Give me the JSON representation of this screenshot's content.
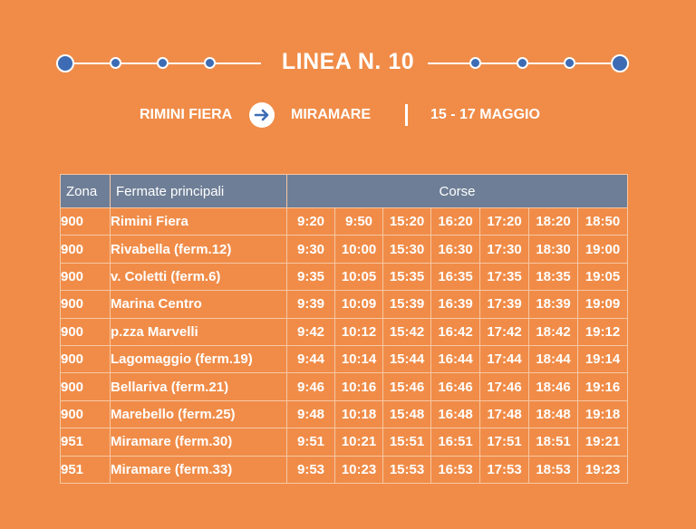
{
  "header": {
    "title": "LINEA N. 10",
    "origin": "RIMINI FIERA",
    "destination": "MIRAMARE",
    "dates": "15 - 17 MAGGIO",
    "arrow_icon": "arrow-right-icon",
    "accent_color": "#3d6cb5",
    "background_color": "#f08c48"
  },
  "table": {
    "headers": {
      "zona": "Zona",
      "fermate": "Fermate principali",
      "corse": "Corse"
    },
    "header_color": "#6e7e96",
    "rows": [
      {
        "zona": "900",
        "stop": "Rimini Fiera",
        "times": [
          "9:20",
          "9:50",
          "15:20",
          "16:20",
          "17:20",
          "18:20",
          "18:50"
        ]
      },
      {
        "zona": "900",
        "stop": "Rivabella (ferm.12)",
        "times": [
          "9:30",
          "10:00",
          "15:30",
          "16:30",
          "17:30",
          "18:30",
          "19:00"
        ]
      },
      {
        "zona": "900",
        "stop": "v. Coletti (ferm.6)",
        "times": [
          "9:35",
          "10:05",
          "15:35",
          "16:35",
          "17:35",
          "18:35",
          "19:05"
        ]
      },
      {
        "zona": "900",
        "stop": "Marina Centro",
        "times": [
          "9:39",
          "10:09",
          "15:39",
          "16:39",
          "17:39",
          "18:39",
          "19:09"
        ]
      },
      {
        "zona": "900",
        "stop": "p.zza Marvelli",
        "times": [
          "9:42",
          "10:12",
          "15:42",
          "16:42",
          "17:42",
          "18:42",
          "19:12"
        ]
      },
      {
        "zona": "900",
        "stop": "Lagomaggio (ferm.19)",
        "times": [
          "9:44",
          "10:14",
          "15:44",
          "16:44",
          "17:44",
          "18:44",
          "19:14"
        ]
      },
      {
        "zona": "900",
        "stop": "Bellariva (ferm.21)",
        "times": [
          "9:46",
          "10:16",
          "15:46",
          "16:46",
          "17:46",
          "18:46",
          "19:16"
        ]
      },
      {
        "zona": "900",
        "stop": "Marebello (ferm.25)",
        "times": [
          "9:48",
          "10:18",
          "15:48",
          "16:48",
          "17:48",
          "18:48",
          "19:18"
        ]
      },
      {
        "zona": "951",
        "stop": "Miramare (ferm.30)",
        "times": [
          "9:51",
          "10:21",
          "15:51",
          "16:51",
          "17:51",
          "18:51",
          "19:21"
        ]
      },
      {
        "zona": "951",
        "stop": "Miramare (ferm.33)",
        "times": [
          "9:53",
          "10:23",
          "15:53",
          "16:53",
          "17:53",
          "18:53",
          "19:23"
        ]
      }
    ]
  }
}
